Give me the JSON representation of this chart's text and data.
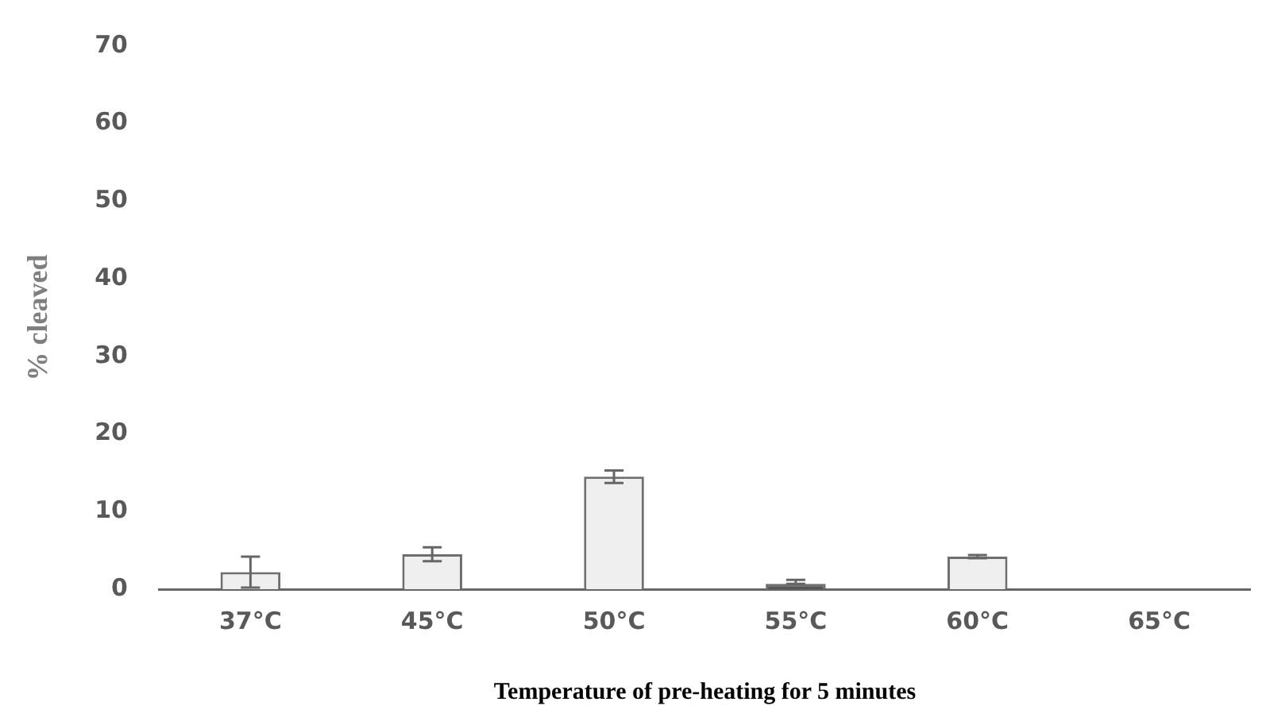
{
  "chart_data": {
    "type": "bar",
    "xlabel": "Temperature of pre-heating for 5 minutes",
    "ylabel": "% cleaved",
    "categories": [
      "37°C",
      "45°C",
      "50°C",
      "55°C",
      "60°C",
      "65°C"
    ],
    "values": [
      2.2,
      4.5,
      14.5,
      0.7,
      4.2,
      0
    ],
    "errors": [
      2,
      0.9,
      0.8,
      [
        0.7,
        1.2
      ],
      0.2,
      null
    ],
    "colors": [
      "#efefef",
      "#efefef",
      "#efefef",
      "#555555",
      "#efefef",
      "#efefef"
    ],
    "ylim": [
      0,
      70
    ],
    "yticks": [
      0,
      10,
      20,
      30,
      40,
      50,
      60,
      70
    ],
    "grid": false,
    "legend": false
  }
}
